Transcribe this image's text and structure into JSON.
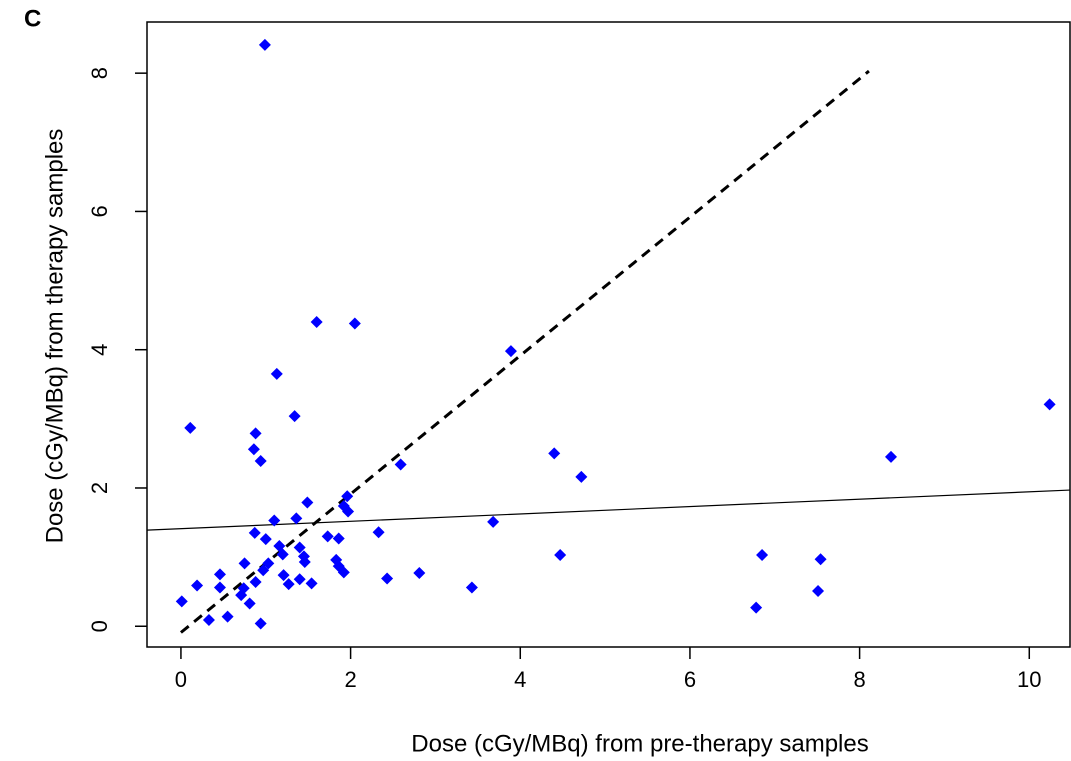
{
  "chart_data": {
    "type": "scatter",
    "panel_label": "C",
    "x_label": "Dose (cGy/MBq) from pre-therapy samples",
    "y_label": "Dose (cGy/MBq) from therapy samples",
    "xlim": [
      -0.4,
      10.48
    ],
    "ylim": [
      -0.3,
      8.74
    ],
    "xticks": [
      0,
      2,
      4,
      6,
      8,
      10
    ],
    "yticks": [
      0,
      2,
      4,
      6,
      8
    ],
    "grid": false,
    "marker": "diamond",
    "color": "#0000ff",
    "x": [
      0.99,
      0.11,
      1.6,
      2.05,
      1.13,
      3.89,
      1.34,
      0.88,
      0.86,
      0.94,
      2.59,
      4.4,
      4.72,
      8.37,
      10.24,
      1.96,
      1.49,
      1.92,
      1.97,
      1.1,
      1.36,
      3.68,
      2.33,
      0.87,
      1.0,
      1.16,
      1.4,
      1.73,
      1.86,
      1.2,
      1.45,
      1.46,
      1.03,
      0.97,
      0.75,
      1.83,
      1.86,
      1.92,
      4.47,
      6.85,
      7.54,
      0.46,
      1.21,
      1.4,
      1.54,
      1.27,
      0.88,
      2.43,
      2.81,
      0.19,
      0.46,
      0.74,
      3.43,
      0.71,
      7.51,
      0.81,
      0.01,
      6.78,
      0.55,
      0.33,
      0.94
    ],
    "y": [
      8.41,
      2.87,
      4.4,
      4.38,
      3.65,
      3.98,
      3.04,
      2.79,
      2.56,
      2.39,
      2.34,
      2.5,
      2.16,
      2.45,
      3.21,
      1.88,
      1.79,
      1.74,
      1.66,
      1.53,
      1.56,
      1.51,
      1.36,
      1.35,
      1.26,
      1.16,
      1.14,
      1.3,
      1.27,
      1.04,
      1.01,
      0.93,
      0.91,
      0.81,
      0.91,
      0.96,
      0.87,
      0.78,
      1.03,
      1.03,
      0.97,
      0.75,
      0.74,
      0.68,
      0.62,
      0.61,
      0.64,
      0.69,
      0.77,
      0.59,
      0.56,
      0.55,
      0.56,
      0.45,
      0.51,
      0.33,
      0.36,
      0.27,
      0.14,
      0.09,
      0.04
    ],
    "reference_lines": [
      {
        "style": "dashed",
        "color": "#000000",
        "x": [
          0,
          8.11
        ],
        "y": [
          -0.09,
          8.03
        ]
      },
      {
        "style": "solid",
        "color": "#000000",
        "x": [
          -0.4,
          10.48
        ],
        "y": [
          1.39,
          1.97
        ]
      }
    ]
  }
}
